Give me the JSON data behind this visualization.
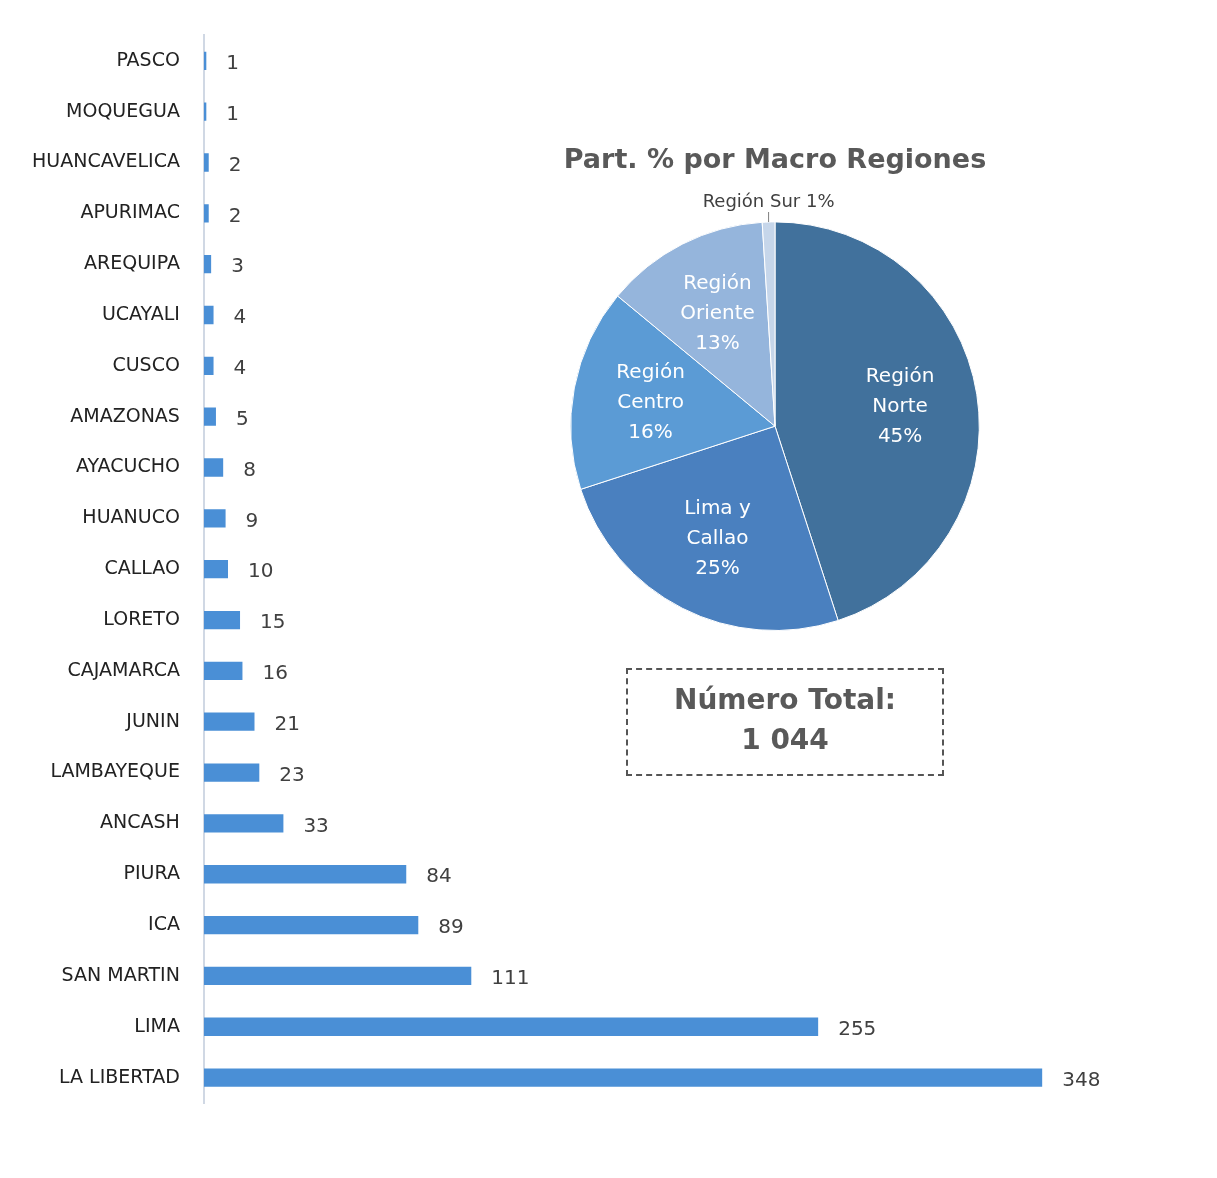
{
  "chart_data": [
    {
      "type": "bar",
      "orientation": "horizontal",
      "categories": [
        "PASCO",
        "MOQUEGUA",
        "HUANCAVELICA",
        "APURIMAC",
        "AREQUIPA",
        "UCAYALI",
        "CUSCO",
        "AMAZONAS",
        "AYACUCHO",
        "HUANUCO",
        "CALLAO",
        "LORETO",
        "CAJAMARCA",
        "JUNIN",
        "LAMBAYEQUE",
        "ANCASH",
        "PIURA",
        "ICA",
        "SAN MARTIN",
        "LIMA",
        "LA LIBERTAD"
      ],
      "values": [
        1,
        1,
        2,
        2,
        3,
        4,
        4,
        5,
        8,
        9,
        10,
        15,
        16,
        21,
        23,
        33,
        84,
        89,
        111,
        255,
        348
      ],
      "color": "#4a8fd6",
      "data_labels": true,
      "grid": false,
      "legend": false,
      "tick_labels": "y"
    },
    {
      "type": "pie",
      "title": "Part. % por Macro Regiones",
      "categories": [
        "Región Norte",
        "Lima y Callao",
        "Región Centro",
        "Región Oriente",
        "Región Sur"
      ],
      "values": [
        45,
        25,
        16,
        13,
        1
      ],
      "value_labels": [
        "45%",
        "25%",
        "16%",
        "13%",
        "1%"
      ],
      "colors": [
        "#41719c",
        "#4a80bf",
        "#5b9bd5",
        "#95b5dc",
        "#c6d6ea"
      ],
      "data_labels": true,
      "legend": false
    },
    {
      "type": "other",
      "title": "Número Total:",
      "subtitle": "1 044"
    }
  ]
}
